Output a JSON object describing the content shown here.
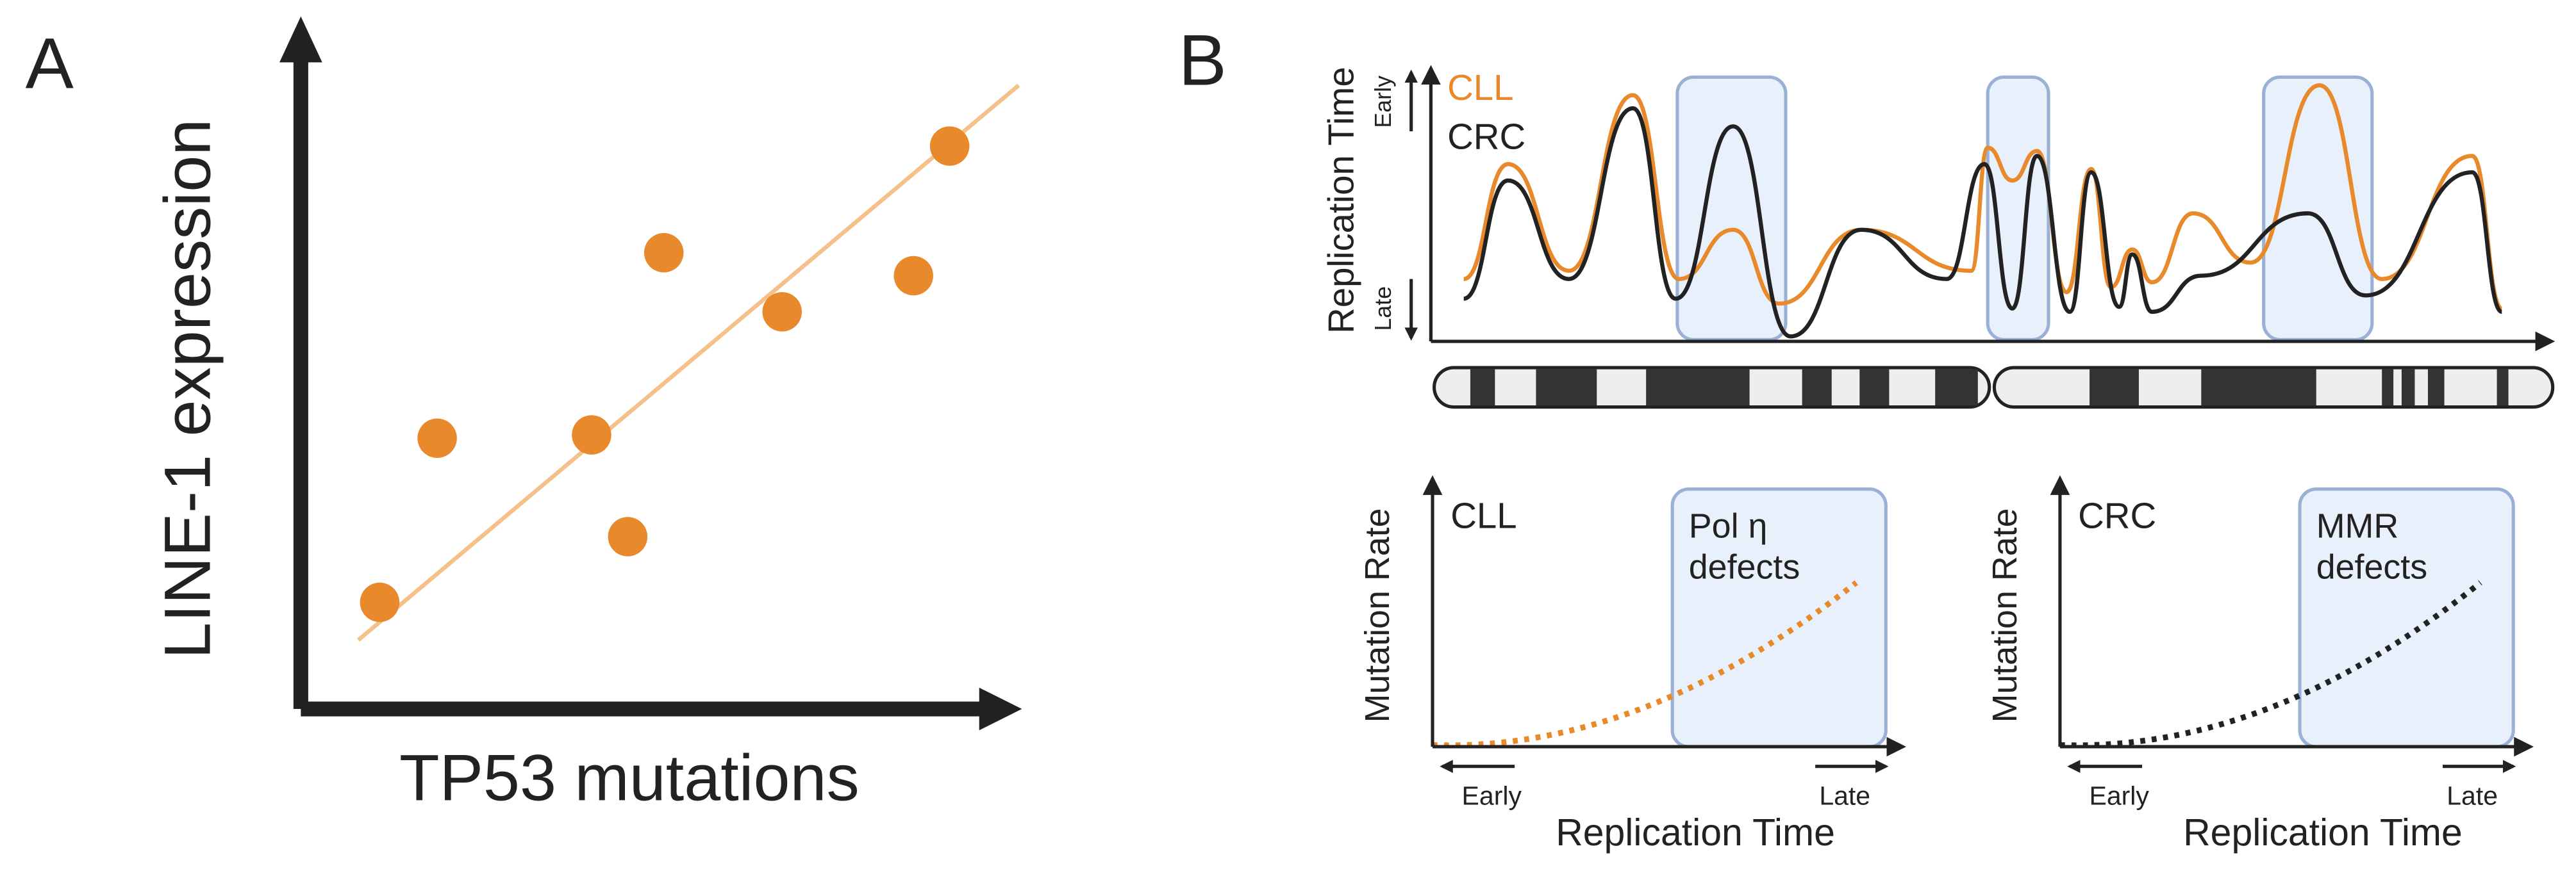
{
  "panels": {
    "A": {
      "label": "A",
      "y_axis": "LINE-1 expression",
      "x_axis": "TP53 mutations"
    },
    "B": {
      "label": "B",
      "top": {
        "y_axis": "Replication Time",
        "early": "Early",
        "late": "Late",
        "legend": [
          "CLL",
          "CRC"
        ]
      },
      "bottom": [
        {
          "y_axis": "Mutation Rate",
          "name": "CLL",
          "box_text": [
            "Pol η",
            "defects"
          ],
          "early": "Early",
          "late": "Late",
          "x_axis": "Replication Time"
        },
        {
          "y_axis": "Mutation Rate",
          "name": "CRC",
          "box_text": [
            "MMR",
            "defects"
          ],
          "early": "Early",
          "late": "Late",
          "x_axis": "Replication Time"
        }
      ]
    }
  }
}
